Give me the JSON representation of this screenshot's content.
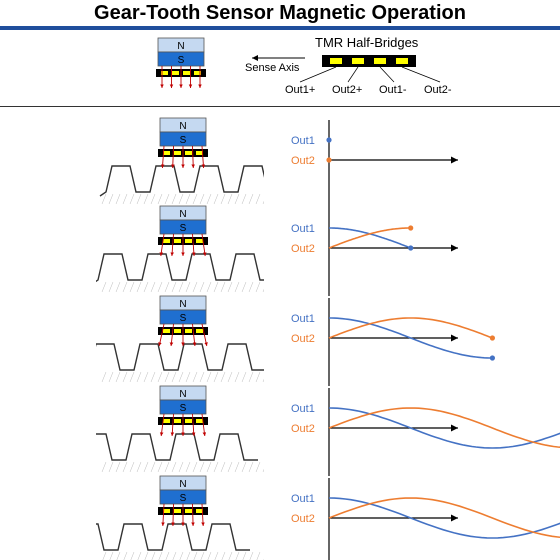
{
  "title": "Gear-Tooth Sensor Magnetic Operation",
  "legend": {
    "heading": "TMR Half-Bridges",
    "sense_axis": "Sense Axis",
    "pins": [
      "Out1+",
      "Out2+",
      "Out1-",
      "Out2-"
    ]
  },
  "magnet": {
    "north": "N",
    "south": "S"
  },
  "series": [
    {
      "name": "Out1",
      "color": "#4472c4"
    },
    {
      "name": "Out2",
      "color": "#ed7d31"
    }
  ],
  "stages": [
    {
      "phase_span": 0.0
    },
    {
      "phase_span": 0.5
    },
    {
      "phase_span": 1.0
    },
    {
      "phase_span": 1.5
    },
    {
      "phase_span": 2.0
    }
  ],
  "colors": {
    "title_rule": "#1f4e9c",
    "magnet_north": "#c5d9f1",
    "magnet_south": "#1f6fd0",
    "chip": "#000000",
    "bridge": "#ffff00",
    "field_line": "#c00000"
  }
}
